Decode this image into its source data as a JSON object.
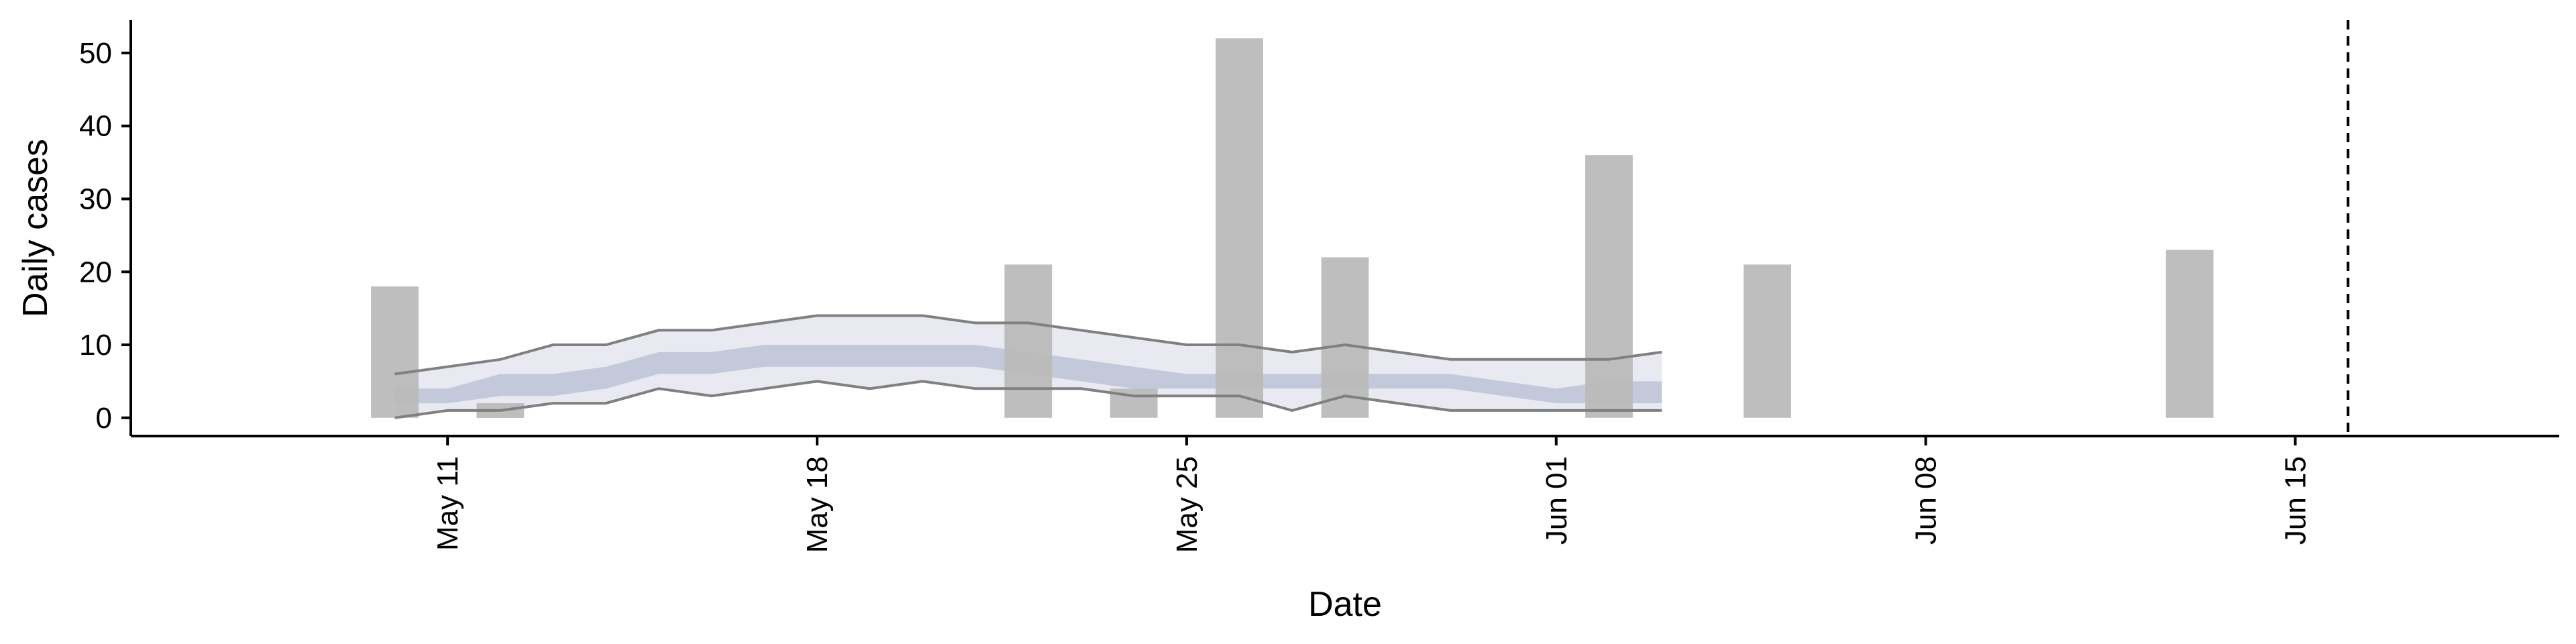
{
  "chart_data": {
    "type": "bar",
    "title": "",
    "xlabel": "Date",
    "ylabel": "Daily cases",
    "ylim": [
      -2.5,
      54.5
    ],
    "xlim": [
      "2020-05-05",
      "2020-06-20"
    ],
    "x_ticks": [
      {
        "date": "2020-05-11",
        "label": "May 11"
      },
      {
        "date": "2020-05-18",
        "label": "May 18"
      },
      {
        "date": "2020-05-25",
        "label": "May 25"
      },
      {
        "date": "2020-06-01",
        "label": "Jun 01"
      },
      {
        "date": "2020-06-08",
        "label": "Jun 08"
      },
      {
        "date": "2020-06-15",
        "label": "Jun 15"
      }
    ],
    "y_ticks": [
      0,
      10,
      20,
      30,
      40,
      50
    ],
    "grid": false,
    "bars": {
      "color": "#bbbbbb",
      "points": [
        {
          "date": "2020-05-10",
          "value": 18
        },
        {
          "date": "2020-05-12",
          "value": 2
        },
        {
          "date": "2020-05-22",
          "value": 21
        },
        {
          "date": "2020-05-24",
          "value": 4
        },
        {
          "date": "2020-05-26",
          "value": 52
        },
        {
          "date": "2020-05-28",
          "value": 22
        },
        {
          "date": "2020-06-02",
          "value": 36
        },
        {
          "date": "2020-06-05",
          "value": 21
        },
        {
          "date": "2020-06-13",
          "value": 23
        }
      ]
    },
    "estimate": {
      "dates": [
        "2020-05-10",
        "2020-05-11",
        "2020-05-12",
        "2020-05-13",
        "2020-05-14",
        "2020-05-15",
        "2020-05-16",
        "2020-05-17",
        "2020-05-18",
        "2020-05-19",
        "2020-05-20",
        "2020-05-21",
        "2020-05-22",
        "2020-05-23",
        "2020-05-24",
        "2020-05-25",
        "2020-05-26",
        "2020-05-27",
        "2020-05-28",
        "2020-05-29",
        "2020-05-30",
        "2020-05-31",
        "2020-06-01",
        "2020-06-02",
        "2020-06-03"
      ],
      "upper": [
        6,
        7,
        8,
        10,
        10,
        12,
        12,
        13,
        14,
        14,
        14,
        13,
        13,
        12,
        11,
        10,
        10,
        9,
        10,
        9,
        8,
        8,
        8,
        8,
        9
      ],
      "lower": [
        0,
        1,
        1,
        2,
        2,
        4,
        3,
        4,
        5,
        4,
        5,
        4,
        4,
        4,
        3,
        3,
        3,
        1,
        3,
        2,
        1,
        1,
        1,
        1,
        1
      ],
      "mid_upper": [
        4,
        4,
        6,
        6,
        7,
        9,
        9,
        10,
        10,
        10,
        10,
        10,
        9,
        8,
        7,
        6,
        6,
        6,
        6,
        6,
        6,
        5,
        4,
        5,
        5
      ],
      "mid_lower": [
        2,
        2,
        3,
        3,
        4,
        6,
        6,
        7,
        7,
        7,
        7,
        7,
        6,
        5,
        4,
        4,
        4,
        4,
        4,
        4,
        4,
        3,
        2,
        2,
        2
      ],
      "outer_color": "#e8e9f1",
      "inner_color": "#c3c9db",
      "line_color": "#808080"
    },
    "vline": {
      "date": "2020-06-16",
      "style": "dashed",
      "color": "#000000"
    }
  }
}
